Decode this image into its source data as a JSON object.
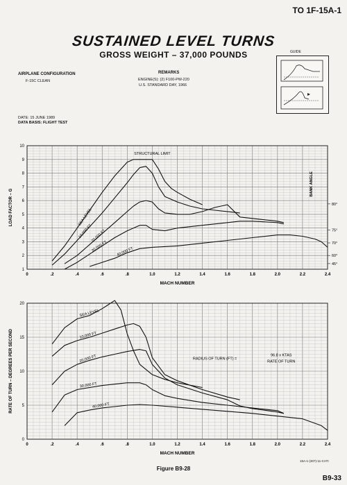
{
  "header": {
    "to_number": "TO  1F-15A-1",
    "title": "SUSTAINED LEVEL TURNS",
    "subtitle": "GROSS WEIGHT – 37,000 POUNDS"
  },
  "info": {
    "config_label": "AIRPLANE CONFIGURATION",
    "config_value": "F-15C CLEAN",
    "remarks_label": "REMARKS",
    "remarks_line1": "ENGINE(S): (2) F100-PW-220",
    "remarks_line2": "U.S. STANDARD DAY, 1966",
    "guide_label": "GUIDE",
    "date": "DATE:  15 JUNE 1989",
    "data_basis": "DATA BASIS:  FLIGHT TEST"
  },
  "footer": {
    "figure": "Figure B9-28",
    "page": "B9-33",
    "ref_code": "15A-1-(307)-11-CATI"
  },
  "chart_data": [
    {
      "type": "line",
      "xlabel": "MACH NUMBER",
      "ylabel": "LOAD FACTOR – G",
      "xlim": [
        0,
        2.4
      ],
      "ylim": [
        1,
        10
      ],
      "x_ticks": [
        "0",
        ".2",
        ".4",
        ".6",
        ".8",
        "1.0",
        "1.2",
        "1.4",
        "1.6",
        "1.8",
        "2.0",
        "2.2",
        "2.4"
      ],
      "y_ticks": [
        "1",
        "2",
        "3",
        "4",
        "5",
        "6",
        "7",
        "8",
        "9",
        "10"
      ],
      "grid": true,
      "right_axis_label": "BANK ANGLE",
      "right_ticks": [
        {
          "label": "80°",
          "g": 5.76
        },
        {
          "label": "75°",
          "g": 3.86
        },
        {
          "label": "70°",
          "g": 2.92
        },
        {
          "label": "60°",
          "g": 2.0
        },
        {
          "label": "45°",
          "g": 1.41
        }
      ],
      "annotations": [
        {
          "text": "STRUCTURAL LIMIT",
          "x": 1.0,
          "y": 9.35
        }
      ],
      "series": [
        {
          "name": "SEA LEVEL",
          "x": [
            0.2,
            0.3,
            0.4,
            0.5,
            0.6,
            0.7,
            0.8,
            0.85,
            0.9,
            0.95,
            1.0,
            1.05,
            1.1,
            1.15,
            1.2,
            1.3,
            1.4
          ],
          "y": [
            1.6,
            2.7,
            4.0,
            5.3,
            6.6,
            7.8,
            8.8,
            9.0,
            9.0,
            9.0,
            9.0,
            8.3,
            7.4,
            6.9,
            6.6,
            6.1,
            5.7
          ]
        },
        {
          "name": "10,000 FT",
          "x": [
            0.2,
            0.3,
            0.4,
            0.5,
            0.6,
            0.7,
            0.8,
            0.85,
            0.9,
            0.95,
            1.0,
            1.05,
            1.1,
            1.2,
            1.3,
            1.4,
            1.5,
            1.6,
            1.7
          ],
          "y": [
            1.3,
            2.1,
            3.1,
            4.1,
            5.1,
            6.2,
            7.3,
            7.9,
            8.4,
            8.5,
            8.0,
            7.0,
            6.3,
            5.9,
            5.6,
            5.4,
            5.3,
            5.2,
            5.1
          ]
        },
        {
          "name": "20,000 FT",
          "x": [
            0.3,
            0.4,
            0.5,
            0.6,
            0.7,
            0.8,
            0.85,
            0.9,
            0.95,
            1.0,
            1.05,
            1.1,
            1.2,
            1.3,
            1.4,
            1.5,
            1.6,
            1.7,
            1.8,
            1.9,
            2.0,
            2.05
          ],
          "y": [
            1.4,
            2.0,
            2.8,
            3.6,
            4.4,
            5.2,
            5.6,
            5.9,
            6.0,
            5.9,
            5.4,
            5.1,
            5.0,
            5.0,
            5.2,
            5.5,
            5.7,
            4.8,
            4.7,
            4.6,
            4.5,
            4.4
          ]
        },
        {
          "name": "30,000 FT",
          "x": [
            0.3,
            0.4,
            0.5,
            0.6,
            0.7,
            0.8,
            0.9,
            0.95,
            1.0,
            1.1,
            1.2,
            1.4,
            1.6,
            1.7,
            1.8,
            2.0,
            2.05
          ],
          "y": [
            1.0,
            1.5,
            2.1,
            2.7,
            3.3,
            3.8,
            4.2,
            4.2,
            3.9,
            3.8,
            4.0,
            4.2,
            4.4,
            4.5,
            4.5,
            4.4,
            4.3
          ]
        },
        {
          "name": "40,000 FT",
          "x": [
            0.5,
            0.6,
            0.7,
            0.8,
            0.9,
            1.0,
            1.2,
            1.4,
            1.6,
            1.8,
            2.0,
            2.1,
            2.2,
            2.3,
            2.35,
            2.4
          ],
          "y": [
            1.2,
            1.5,
            1.8,
            2.2,
            2.5,
            2.6,
            2.7,
            2.9,
            3.1,
            3.3,
            3.5,
            3.5,
            3.4,
            3.2,
            3.0,
            2.6
          ]
        }
      ]
    },
    {
      "type": "line",
      "xlabel": "MACH NUMBER",
      "ylabel": "RATE OF TURN – DEGREES PER SECOND",
      "xlim": [
        0,
        2.4
      ],
      "ylim": [
        0,
        20
      ],
      "x_ticks": [
        "0",
        ".2",
        ".4",
        ".6",
        ".8",
        "1.0",
        "1.2",
        "1.4",
        "1.6",
        "1.8",
        "2.0",
        "2.2",
        "2.4"
      ],
      "y_ticks": [
        "0",
        "5",
        "10",
        "15",
        "20"
      ],
      "grid": true,
      "annotations": [
        {
          "text": "RADIUS OF TURN (FT) =",
          "x": 1.5,
          "y": 11.7
        },
        {
          "text": "96.8 x KTAS",
          "x": 2.03,
          "y": 12.2
        },
        {
          "text": "RATE OF TURN",
          "x": 2.03,
          "y": 11.3
        }
      ],
      "series": [
        {
          "name": "SEA LEVEL",
          "x": [
            0.2,
            0.3,
            0.4,
            0.5,
            0.6,
            0.65,
            0.7,
            0.75,
            0.8,
            0.85,
            0.9,
            1.0,
            1.1,
            1.2,
            1.4
          ],
          "y": [
            14.0,
            16.4,
            17.7,
            18.2,
            19.2,
            19.8,
            20.4,
            19.0,
            15.5,
            13.0,
            11.0,
            9.5,
            8.8,
            8.3,
            7.6
          ]
        },
        {
          "name": "10,000 FT",
          "x": [
            0.2,
            0.3,
            0.4,
            0.5,
            0.6,
            0.7,
            0.8,
            0.85,
            0.9,
            0.95,
            1.0,
            1.1,
            1.2,
            1.4,
            1.6,
            1.7
          ],
          "y": [
            12.2,
            13.8,
            14.5,
            15.0,
            15.6,
            16.2,
            16.8,
            17.0,
            16.6,
            15.0,
            12.0,
            9.5,
            8.6,
            7.3,
            6.2,
            5.8
          ]
        },
        {
          "name": "20,000 FT",
          "x": [
            0.2,
            0.3,
            0.4,
            0.5,
            0.6,
            0.7,
            0.8,
            0.9,
            0.95,
            1.0,
            1.1,
            1.2,
            1.4,
            1.6,
            1.7,
            1.8,
            2.0,
            2.05
          ],
          "y": [
            8.0,
            10.0,
            11.0,
            11.6,
            12.1,
            12.5,
            12.9,
            13.2,
            13.0,
            11.0,
            9.0,
            8.0,
            6.8,
            5.8,
            4.9,
            4.5,
            4.0,
            3.8
          ]
        },
        {
          "name": "30,000 FT",
          "x": [
            0.2,
            0.3,
            0.4,
            0.5,
            0.6,
            0.7,
            0.8,
            0.9,
            0.95,
            1.0,
            1.1,
            1.2,
            1.4,
            1.6,
            1.7,
            2.0,
            2.05
          ],
          "y": [
            4.0,
            6.5,
            7.3,
            7.6,
            7.9,
            8.1,
            8.3,
            8.3,
            8.0,
            7.3,
            6.4,
            6.0,
            5.4,
            5.0,
            4.8,
            4.2,
            3.8
          ]
        },
        {
          "name": "40,000 FT",
          "x": [
            0.3,
            0.4,
            0.5,
            0.6,
            0.7,
            0.8,
            0.9,
            1.0,
            1.2,
            1.4,
            1.6,
            1.8,
            2.0,
            2.2,
            2.35,
            2.4
          ],
          "y": [
            2.0,
            3.9,
            4.3,
            4.6,
            4.8,
            5.0,
            5.1,
            5.0,
            4.7,
            4.4,
            4.1,
            3.8,
            3.4,
            3.0,
            2.0,
            1.3
          ]
        }
      ]
    }
  ]
}
